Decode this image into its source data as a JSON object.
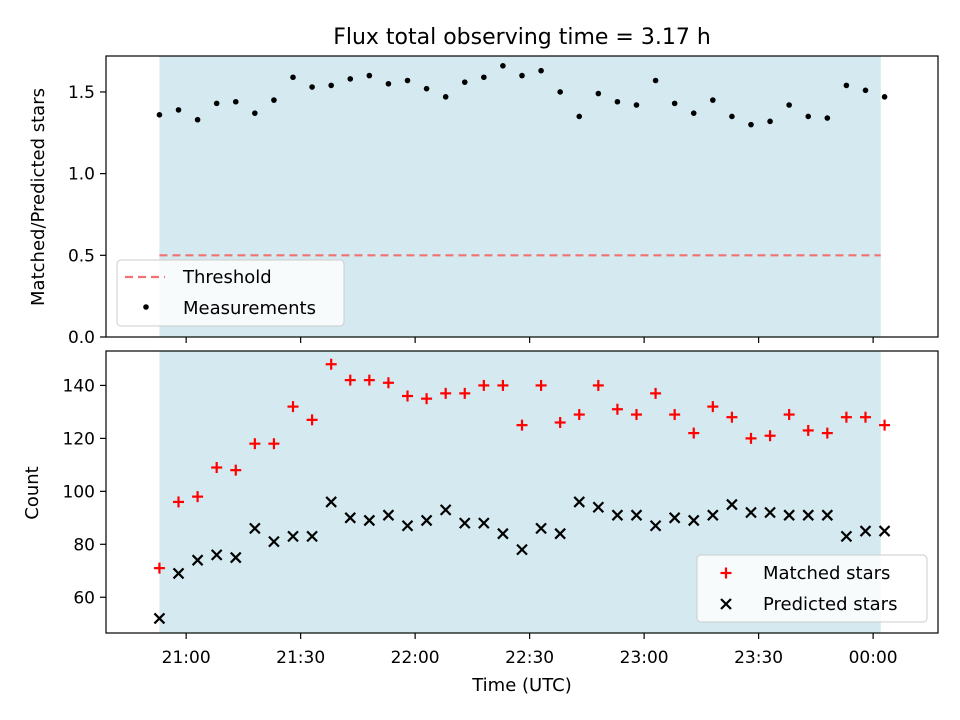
{
  "figure": {
    "title": "Flux total observing time = 3.17 h",
    "xlabel": "Time (UTC)"
  },
  "colors": {
    "shade": "#d4eaf0",
    "threshold": "#f07373",
    "measurement": "#000000",
    "matched": "#ff0000",
    "predicted": "#000000"
  },
  "chart_data": [
    {
      "type": "scatter",
      "panel": "top",
      "ylabel": "Matched/Predicted stars",
      "ylim": [
        0.0,
        1.72
      ],
      "yticks": [
        0.0,
        0.5,
        1.0,
        1.5
      ],
      "ytick_labels": [
        "0.0",
        "0.5",
        "1.0",
        "1.5"
      ],
      "grid": false,
      "legend_position": "lower-left",
      "shaded_region": [
        "20:53",
        "00:02"
      ],
      "threshold": {
        "name": "Threshold",
        "y": 0.5,
        "style": "dashed"
      },
      "series": [
        {
          "name": "Measurements",
          "marker": "dot",
          "x": [
            "20:53",
            "20:58",
            "21:03",
            "21:08",
            "21:13",
            "21:18",
            "21:23",
            "21:28",
            "21:33",
            "21:38",
            "21:43",
            "21:48",
            "21:53",
            "21:58",
            "22:03",
            "22:08",
            "22:13",
            "22:18",
            "22:23",
            "22:28",
            "22:33",
            "22:38",
            "22:43",
            "22:48",
            "22:53",
            "22:58",
            "23:03",
            "23:08",
            "23:13",
            "23:18",
            "23:23",
            "23:28",
            "23:33",
            "23:38",
            "23:43",
            "23:48",
            "23:53",
            "23:58",
            "00:03"
          ],
          "y": [
            1.36,
            1.39,
            1.33,
            1.43,
            1.44,
            1.37,
            1.45,
            1.59,
            1.53,
            1.54,
            1.58,
            1.6,
            1.55,
            1.57,
            1.52,
            1.47,
            1.56,
            1.59,
            1.66,
            1.6,
            1.63,
            1.5,
            1.35,
            1.49,
            1.44,
            1.42,
            1.57,
            1.43,
            1.37,
            1.45,
            1.35,
            1.3,
            1.32,
            1.42,
            1.35,
            1.34,
            1.54,
            1.51,
            1.47
          ]
        }
      ]
    },
    {
      "type": "scatter",
      "panel": "bottom",
      "ylabel": "Count",
      "ylim": [
        46.5,
        153
      ],
      "yticks": [
        60,
        80,
        100,
        120,
        140
      ],
      "ytick_labels": [
        "60",
        "80",
        "100",
        "120",
        "140"
      ],
      "grid": false,
      "legend_position": "lower-right",
      "shaded_region": [
        "20:53",
        "00:02"
      ],
      "x": [
        "20:53",
        "20:58",
        "21:03",
        "21:08",
        "21:13",
        "21:18",
        "21:23",
        "21:28",
        "21:33",
        "21:38",
        "21:43",
        "21:48",
        "21:53",
        "21:58",
        "22:03",
        "22:08",
        "22:13",
        "22:18",
        "22:23",
        "22:28",
        "22:33",
        "22:38",
        "22:43",
        "22:48",
        "22:53",
        "22:58",
        "23:03",
        "23:08",
        "23:13",
        "23:18",
        "23:23",
        "23:28",
        "23:33",
        "23:38",
        "23:43",
        "23:48",
        "23:53",
        "23:58",
        "00:03"
      ],
      "series": [
        {
          "name": "Matched stars",
          "marker": "plus",
          "values": [
            71,
            96,
            98,
            109,
            108,
            118,
            118,
            132,
            127,
            148,
            142,
            142,
            141,
            136,
            135,
            137,
            137,
            140,
            140,
            125,
            140,
            126,
            129,
            140,
            131,
            129,
            137,
            129,
            122,
            132,
            128,
            120,
            121,
            129,
            123,
            122,
            128,
            128,
            125
          ]
        },
        {
          "name": "Predicted stars",
          "marker": "x",
          "values": [
            52,
            69,
            74,
            76,
            75,
            86,
            81,
            83,
            83,
            96,
            90,
            89,
            91,
            87,
            89,
            93,
            88,
            88,
            84,
            78,
            86,
            84,
            96,
            94,
            91,
            91,
            87,
            90,
            89,
            91,
            95,
            92,
            92,
            91,
            91,
            91,
            83,
            85,
            85
          ]
        }
      ]
    }
  ],
  "xaxis": {
    "start": "20:39",
    "end": "00:17",
    "ticks": [
      "21:00",
      "21:30",
      "22:00",
      "22:30",
      "23:00",
      "23:30",
      "00:00"
    ]
  }
}
